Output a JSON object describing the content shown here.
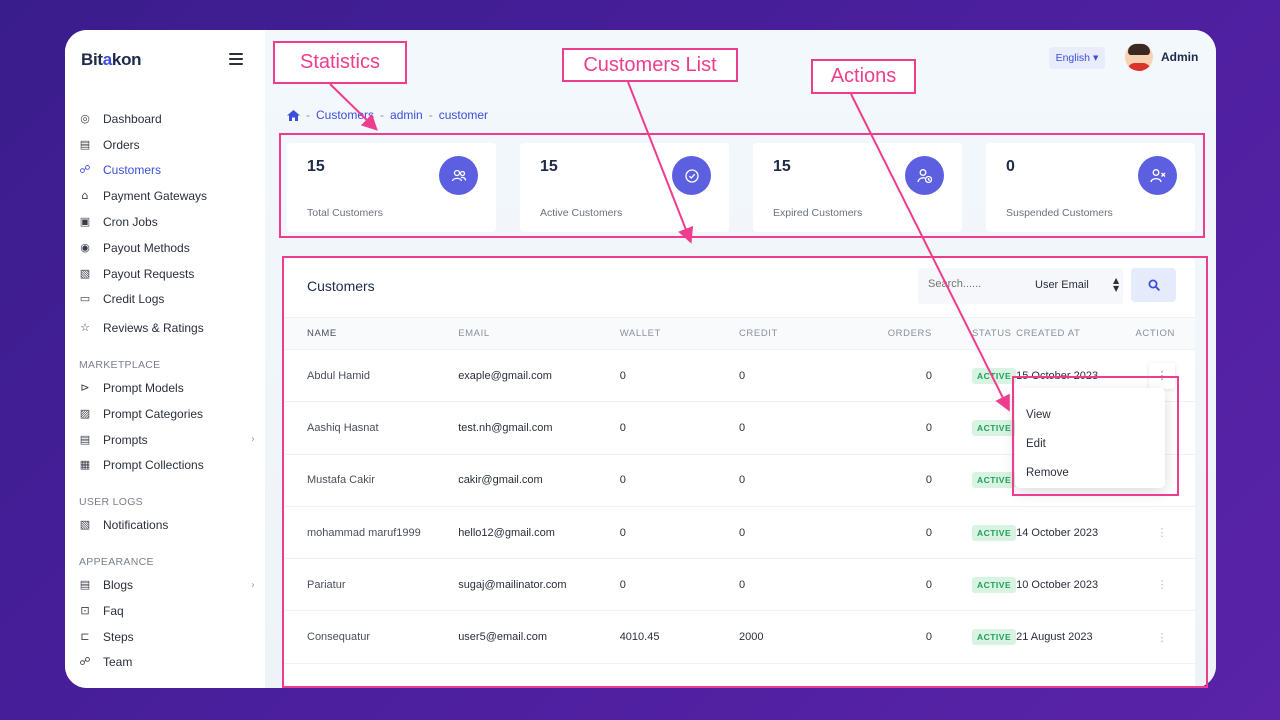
{
  "brand": {
    "logo_part1": "Bit",
    "logo_accent": "a",
    "logo_part2": "kon"
  },
  "sidebar": {
    "items": [
      {
        "label": "Dashboard",
        "icon": "dashboard-icon"
      },
      {
        "label": "Orders",
        "icon": "orders-icon"
      },
      {
        "label": "Customers",
        "icon": "customers-icon",
        "active": true
      },
      {
        "label": "Payment Gateways",
        "icon": "bank-icon"
      },
      {
        "label": "Cron Jobs",
        "icon": "cron-icon"
      },
      {
        "label": "Payout Methods",
        "icon": "payout-methods-icon"
      },
      {
        "label": "Payout Requests",
        "icon": "payout-requests-icon"
      },
      {
        "label": "Credit Logs",
        "icon": "credit-logs-icon"
      },
      {
        "label": "Reviews & Ratings",
        "icon": "star-icon"
      }
    ],
    "marketplace_title": "MARKETPLACE",
    "marketplace_items": [
      {
        "label": "Prompt Models",
        "icon": "prompt-models-icon"
      },
      {
        "label": "Prompt Categories",
        "icon": "prompt-categories-icon"
      },
      {
        "label": "Prompts",
        "icon": "prompts-icon",
        "chevron": true
      },
      {
        "label": "Prompt Collections",
        "icon": "prompt-collections-icon"
      }
    ],
    "user_logs_title": "USER LOGS",
    "user_logs_items": [
      {
        "label": "Notifications",
        "icon": "notifications-icon"
      }
    ],
    "appearance_title": "APPEARANCE",
    "appearance_items": [
      {
        "label": "Blogs",
        "icon": "blogs-icon",
        "chevron": true
      },
      {
        "label": "Faq",
        "icon": "faq-icon"
      },
      {
        "label": "Steps",
        "icon": "steps-icon"
      },
      {
        "label": "Team",
        "icon": "team-icon"
      }
    ]
  },
  "topbar": {
    "language": "English",
    "user": "Admin"
  },
  "breadcrumb": [
    "Customers",
    "admin",
    "customer"
  ],
  "stats": [
    {
      "value": "15",
      "label": "Total Customers",
      "icon": "users-icon"
    },
    {
      "value": "15",
      "label": "Active Customers",
      "icon": "check-shield-icon"
    },
    {
      "value": "15",
      "label": "Expired Customers",
      "icon": "user-clock-icon"
    },
    {
      "value": "0",
      "label": "Suspended Customers",
      "icon": "user-x-icon"
    }
  ],
  "customers_card": {
    "title": "Customers",
    "search_placeholder": "Search......",
    "search_field": "User Email",
    "columns": [
      "NAME",
      "EMAIL",
      "WALLET",
      "CREDIT",
      "ORDERS",
      "STATUS",
      "CREATED AT",
      "ACTION"
    ],
    "rows": [
      {
        "name": "Abdul Hamid",
        "email": "exaple@gmail.com",
        "wallet": "0",
        "credit": "0",
        "orders": "0",
        "status": "ACTIVE",
        "created": "15 October 2023"
      },
      {
        "name": "Aashiq Hasnat",
        "email": "test.nh@gmail.com",
        "wallet": "0",
        "credit": "0",
        "orders": "0",
        "status": "ACTIVE",
        "created": ""
      },
      {
        "name": "Mustafa Cakir",
        "email": "cakir@gmail.com",
        "wallet": "0",
        "credit": "0",
        "orders": "0",
        "status": "ACTIVE",
        "created": ""
      },
      {
        "name": "mohammad maruf1999",
        "email": "hello12@gmail.com",
        "wallet": "0",
        "credit": "0",
        "orders": "0",
        "status": "ACTIVE",
        "created": "14 October 2023"
      },
      {
        "name": "Pariatur",
        "email": "sugaj@mailinator.com",
        "wallet": "0",
        "credit": "0",
        "orders": "0",
        "status": "ACTIVE",
        "created": "10 October 2023"
      },
      {
        "name": "Consequatur",
        "email": "user5@email.com",
        "wallet": "4010.45",
        "credit": "2000",
        "orders": "0",
        "status": "ACTIVE",
        "created": "21 August 2023"
      }
    ]
  },
  "action_menu": [
    "View",
    "Edit",
    "Remove"
  ],
  "annotations": {
    "statistics": "Statistics",
    "customers_list": "Customers List",
    "actions": "Actions"
  },
  "colors": {
    "accent": "#3d4fd8",
    "annotation": "#ef3d8e",
    "icon_circle": "#5b5fe0",
    "active_badge": "#20a05a"
  }
}
